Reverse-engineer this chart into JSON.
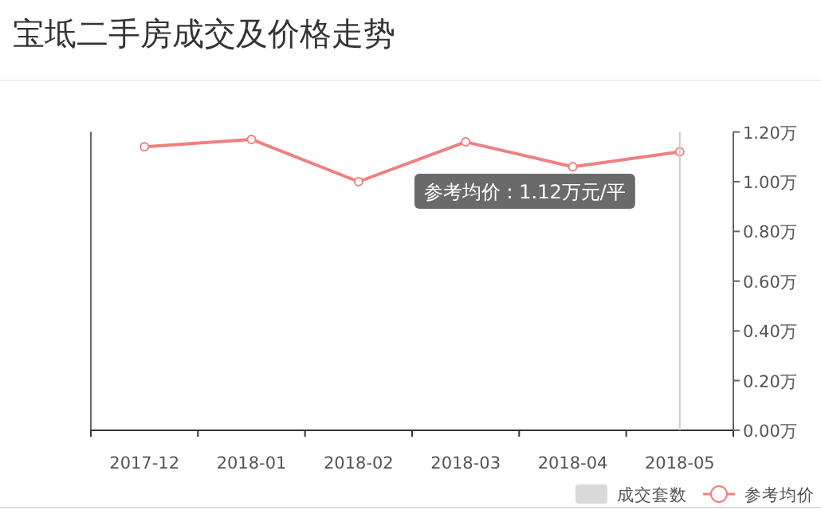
{
  "chart_data": {
    "type": "line",
    "title": "宝坻二手房成交及价格走势",
    "categories": [
      "2017-12",
      "2018-01",
      "2018-02",
      "2018-03",
      "2018-04",
      "2018-05"
    ],
    "series": [
      {
        "name": "成交套数",
        "type": "bar",
        "color": "#d9d9d9",
        "values": [
          null,
          null,
          null,
          null,
          null,
          null
        ]
      },
      {
        "name": "参考均价",
        "color": "#f08080",
        "values": [
          1.14,
          1.17,
          1.0,
          1.16,
          1.06,
          1.12
        ]
      }
    ],
    "ylim": [
      0,
      1.2
    ],
    "yticks": [
      {
        "value": 0,
        "label": "0.00万"
      },
      {
        "value": 0.2,
        "label": "0.20万"
      },
      {
        "value": 0.4,
        "label": "0.40万"
      },
      {
        "value": 0.6,
        "label": "0.60万"
      },
      {
        "value": 0.8,
        "label": "0.80万"
      },
      {
        "value": 1.0,
        "label": "1.00万"
      },
      {
        "value": 1.2,
        "label": "1.20万"
      }
    ],
    "marker": "circle",
    "legend": "bottom right",
    "annotations": [
      "参考均价 : 1.12万元/平"
    ]
  }
}
